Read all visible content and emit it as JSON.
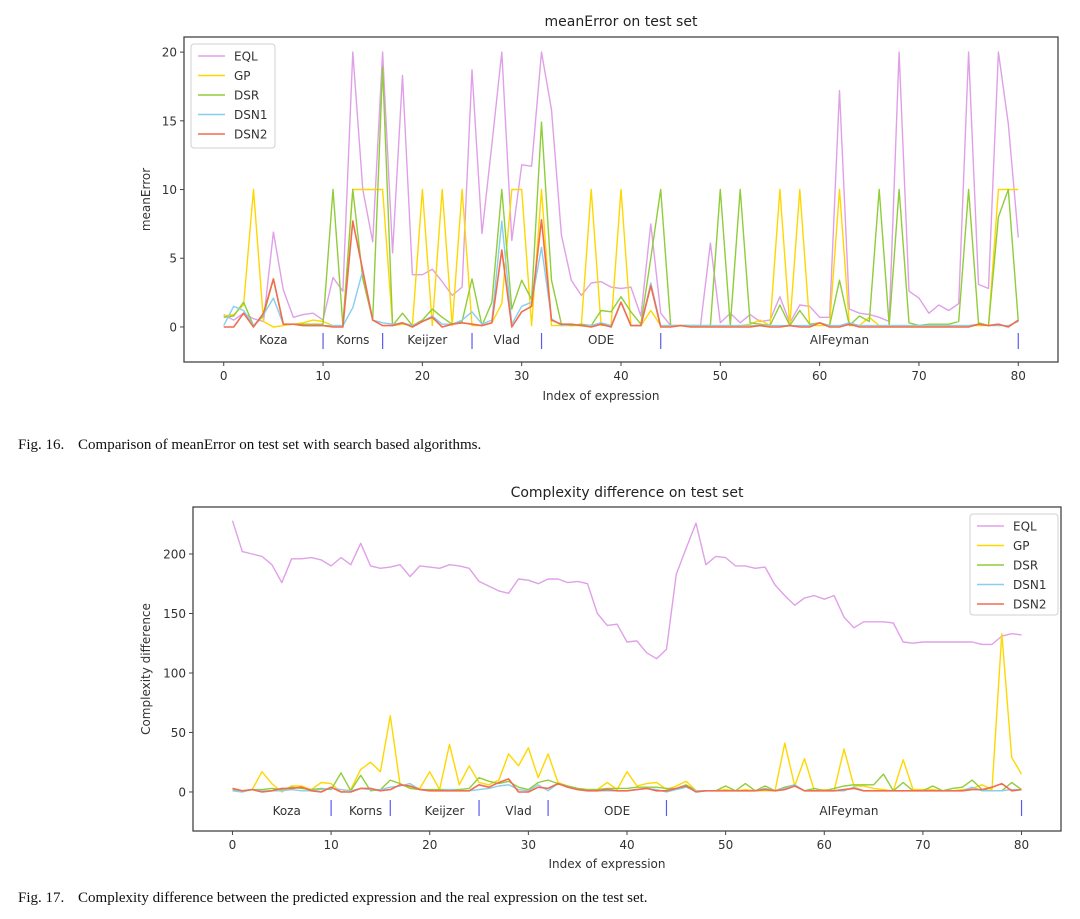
{
  "captions": {
    "fig16": {
      "label": "Fig. 16.",
      "text": "Comparison of meanError on test set with search based algorithms."
    },
    "fig17": {
      "label": "Fig. 17.",
      "text": "Complexity difference between the predicted expression and the real expression on the test set."
    }
  },
  "colors": {
    "EQL": "#e0a0e8",
    "GP": "#ffd700",
    "DSR": "#8fcd3a",
    "DSN1": "#87cef0",
    "DSN2": "#f26c4f",
    "separator": "#5a5af0"
  },
  "chart_data": [
    {
      "type": "line",
      "title": "meanError on test set",
      "xlabel": "Index of expression",
      "ylabel": "meanError",
      "xlim": [
        -4,
        84
      ],
      "ylim": [
        -2.55,
        21.1
      ],
      "xticks": [
        0,
        10,
        20,
        30,
        40,
        50,
        60,
        70,
        80
      ],
      "yticks": [
        0,
        5,
        10,
        15,
        20
      ],
      "legend_position": "upper-left",
      "groups": [
        {
          "label": "Koza",
          "center": 5,
          "end": 10
        },
        {
          "label": "Korns",
          "center": 13,
          "end": 16
        },
        {
          "label": "Keijzer",
          "center": 20.5,
          "end": 25
        },
        {
          "label": "Vlad",
          "center": 28.5,
          "end": 32
        },
        {
          "label": "ODE",
          "center": 38,
          "end": 44
        },
        {
          "label": "AIFeyman",
          "center": 62,
          "end": 80
        }
      ],
      "series": [
        {
          "name": "EQL",
          "values": [
            0.9,
            0.5,
            1.0,
            0.6,
            0.4,
            6.9,
            2.7,
            0.7,
            0.9,
            1.0,
            0.5,
            3.6,
            2.6,
            20,
            10,
            6.2,
            20,
            5.4,
            18.3,
            3.8,
            3.8,
            4.2,
            3.3,
            2.3,
            2.9,
            18.7,
            6.8,
            13.3,
            20,
            6.3,
            11.8,
            11.7,
            20,
            15.8,
            6.7,
            3.4,
            2.3,
            3.2,
            3.3,
            2.9,
            2.8,
            2.9,
            0.8,
            7.5,
            1.0,
            0.1,
            0.1,
            0.1,
            0.1,
            6.1,
            0.3,
            1.0,
            0.3,
            0.9,
            0.4,
            0.5,
            2.2,
            0.3,
            1.6,
            1.5,
            0.7,
            0.7,
            17.2,
            1.3,
            1.0,
            0.9,
            0.7,
            0.4,
            20,
            2.6,
            2.1,
            1.0,
            1.6,
            1.2,
            1.7,
            20,
            3.1,
            2.8,
            20,
            14.8,
            6.5
          ]
        },
        {
          "name": "GP",
          "values": [
            0.8,
            0.9,
            1.6,
            10,
            0.4,
            0,
            0.1,
            0.2,
            0.3,
            0.5,
            0.4,
            0.1,
            0.1,
            10,
            10,
            10,
            10,
            0.1,
            0.2,
            0.1,
            10,
            0.1,
            10,
            0.1,
            10,
            0.1,
            0.1,
            0.3,
            1.7,
            10,
            10,
            0.1,
            10,
            0.1,
            0.1,
            0.1,
            0.1,
            10,
            0.1,
            0.1,
            10,
            0.1,
            0.1,
            1.2,
            0.1,
            0.1,
            0.1,
            0.1,
            0.1,
            0.1,
            0.1,
            0.1,
            0.1,
            0.2,
            0.5,
            0.1,
            10,
            0.1,
            10,
            0.1,
            0.1,
            0.1,
            10,
            0.1,
            0.1,
            0.7,
            0.1,
            0.1,
            0.1,
            0.1,
            0.1,
            0.1,
            0.1,
            0.1,
            0.1,
            0.1,
            0.1,
            0.1,
            10,
            10,
            10
          ]
        },
        {
          "name": "DSR",
          "values": [
            0.7,
            0.8,
            1.8,
            0.1,
            0.8,
            3.5,
            0.2,
            0.2,
            0.2,
            0.2,
            0.2,
            10,
            0.1,
            10,
            3.5,
            0.5,
            18.9,
            0.1,
            1.0,
            0.1,
            0.5,
            1.3,
            0.7,
            0.2,
            0.4,
            3.5,
            0.1,
            1.8,
            10,
            1.3,
            3.4,
            2.0,
            14.9,
            3.4,
            0.2,
            0.1,
            0.2,
            0.1,
            1.2,
            1.1,
            2.2,
            1.1,
            0.2,
            5.0,
            10,
            0.1,
            0.1,
            0.1,
            0.1,
            0.1,
            10,
            0.1,
            10,
            0.3,
            0.2,
            0.1,
            1.6,
            0.1,
            1.2,
            0.2,
            0.3,
            0.1,
            3.4,
            0.1,
            0.8,
            0.4,
            10,
            0.1,
            10,
            0.3,
            0.1,
            0.2,
            0.2,
            0.2,
            0.4,
            10,
            0.3,
            0.1,
            8,
            10,
            0.4
          ]
        },
        {
          "name": "DSN1",
          "values": [
            0.1,
            1.5,
            1.2,
            0.1,
            0.9,
            2.1,
            0.2,
            0.2,
            0.1,
            0.1,
            0.1,
            0.1,
            0.1,
            1.4,
            4.1,
            0.5,
            0.3,
            0.2,
            0.3,
            0.1,
            0.4,
            0.8,
            0.2,
            0.2,
            0.5,
            1.1,
            0.2,
            0.5,
            7.7,
            0.2,
            1.5,
            1.8,
            5.8,
            0.6,
            0.1,
            0.2,
            0.1,
            0.1,
            0.3,
            0.1,
            1.8,
            0.1,
            0.1,
            3.2,
            0.1,
            0.1,
            0.1,
            0.1,
            0.1,
            0.1,
            0.1,
            0.1,
            0.1,
            0.1,
            0.1,
            0.1,
            0.1,
            0.1,
            0.1,
            0.1,
            0.3,
            0.1,
            0.1,
            0.3,
            0.1,
            0.1,
            0.1,
            0.1,
            0.1,
            0.1,
            0.1,
            0.1,
            0.1,
            0.1,
            0.1,
            0.1,
            0.2,
            0.1,
            0.1,
            0.1,
            0.4
          ]
        },
        {
          "name": "DSN2",
          "values": [
            0.0,
            0.0,
            1.0,
            0.0,
            1.0,
            3.5,
            0.2,
            0.2,
            0.1,
            0.1,
            0.1,
            0.0,
            0.0,
            7.7,
            4.1,
            0.5,
            0.1,
            0.1,
            0.3,
            0.0,
            0.4,
            0.7,
            0.0,
            0.2,
            0.3,
            0.2,
            0.1,
            0.3,
            5.6,
            0.0,
            1.1,
            1.5,
            7.8,
            0.5,
            0.2,
            0.2,
            0.1,
            0.0,
            0.2,
            0.0,
            1.8,
            0.1,
            0.1,
            3.0,
            0.0,
            0.0,
            0.1,
            0.0,
            0.0,
            0.0,
            0.0,
            0.0,
            0.0,
            0.0,
            0.1,
            0.0,
            0.0,
            0.1,
            0.0,
            0.0,
            0.3,
            0.0,
            0.0,
            0.2,
            0.0,
            0.0,
            0.0,
            0.0,
            0.0,
            0.0,
            0.0,
            0.0,
            0.0,
            0.0,
            0.0,
            0.0,
            0.2,
            0.1,
            0.2,
            0.0,
            0.5
          ]
        }
      ]
    },
    {
      "type": "line",
      "title": "Complexity difference on test set",
      "xlabel": "Index of expression",
      "ylabel": "Complexity difference",
      "xlim": [
        -4,
        84
      ],
      "ylim": [
        -32.8,
        239.5
      ],
      "xticks": [
        0,
        10,
        20,
        30,
        40,
        50,
        60,
        70,
        80
      ],
      "yticks": [
        0,
        50,
        100,
        150,
        200
      ],
      "legend_position": "upper-right",
      "groups": [
        {
          "label": "Koza",
          "center": 5.5,
          "end": 10
        },
        {
          "label": "Korns",
          "center": 13.5,
          "end": 16
        },
        {
          "label": "Keijzer",
          "center": 21.5,
          "end": 25
        },
        {
          "label": "Vlad",
          "center": 29,
          "end": 32
        },
        {
          "label": "ODE",
          "center": 39,
          "end": 44
        },
        {
          "label": "AIFeyman",
          "center": 62.5,
          "end": 80
        }
      ],
      "series": [
        {
          "name": "EQL",
          "values": [
            228,
            202,
            200,
            198,
            191,
            176,
            196,
            196,
            197,
            195,
            190,
            197,
            191,
            209,
            190,
            188,
            189,
            191,
            181,
            190,
            189,
            188,
            191,
            190,
            188,
            177,
            173,
            169,
            167,
            179,
            178,
            175,
            179,
            179,
            176,
            177,
            175,
            150,
            140,
            141,
            126,
            127,
            117,
            112,
            120,
            183,
            205,
            226,
            191,
            198,
            197,
            190,
            190,
            188,
            189,
            174,
            165,
            157,
            163,
            165,
            162,
            165,
            147,
            138,
            143,
            143,
            143,
            142,
            126,
            125,
            126,
            126,
            126,
            126,
            126,
            126,
            124,
            124,
            131,
            133,
            132
          ]
        },
        {
          "name": "GP",
          "values": [
            3,
            1,
            2,
            17,
            7,
            0,
            5,
            5,
            2,
            8,
            7,
            0,
            2,
            19,
            25,
            17,
            64,
            6,
            4,
            3,
            17,
            2,
            40,
            6,
            22,
            8,
            6,
            10,
            32,
            22,
            37,
            12,
            32,
            8,
            5,
            3,
            2,
            2,
            8,
            2,
            17,
            5,
            7,
            8,
            2,
            5,
            9,
            1,
            1,
            1,
            2,
            1,
            2,
            1,
            1,
            1,
            41,
            5,
            28,
            1,
            2,
            1,
            36,
            5,
            5,
            3,
            2,
            1,
            27,
            2,
            2,
            2,
            1,
            1,
            2,
            3,
            6,
            2,
            133,
            29,
            15
          ]
        },
        {
          "name": "DSR",
          "values": [
            2,
            1,
            2,
            2,
            3,
            2,
            4,
            3,
            2,
            3,
            2,
            16,
            1,
            14,
            1,
            2,
            10,
            7,
            3,
            2,
            2,
            2,
            2,
            2,
            3,
            12,
            9,
            7,
            9,
            4,
            2,
            8,
            10,
            7,
            5,
            3,
            2,
            2,
            3,
            3,
            3,
            4,
            4,
            4,
            3,
            3,
            6,
            1,
            1,
            1,
            5,
            1,
            7,
            1,
            5,
            1,
            4,
            6,
            1,
            3,
            1,
            3,
            5,
            6,
            6,
            6,
            15,
            1,
            8,
            1,
            1,
            5,
            1,
            3,
            4,
            10,
            2,
            1,
            1,
            8,
            2
          ]
        },
        {
          "name": "DSN1",
          "values": [
            1,
            0,
            2,
            1,
            1,
            1,
            2,
            1,
            1,
            2,
            3,
            2,
            1,
            3,
            2,
            2,
            4,
            5,
            7,
            2,
            1,
            1,
            2,
            1,
            1,
            2,
            3,
            5,
            6,
            2,
            1,
            6,
            1,
            7,
            4,
            2,
            1,
            1,
            1,
            1,
            1,
            2,
            3,
            2,
            0,
            2,
            4,
            1,
            1,
            1,
            1,
            1,
            1,
            1,
            3,
            1,
            3,
            6,
            1,
            1,
            1,
            1,
            1,
            4,
            1,
            1,
            1,
            1,
            1,
            1,
            1,
            1,
            1,
            1,
            1,
            4,
            1,
            1,
            1,
            2,
            2
          ]
        },
        {
          "name": "DSN2",
          "values": [
            3,
            1,
            2,
            0,
            1,
            3,
            3,
            4,
            1,
            0,
            4,
            0,
            0,
            3,
            3,
            1,
            2,
            6,
            5,
            2,
            1,
            1,
            1,
            1,
            1,
            6,
            4,
            8,
            11,
            0,
            0,
            4,
            3,
            7,
            4,
            2,
            1,
            1,
            2,
            1,
            1,
            2,
            3,
            1,
            1,
            3,
            5,
            0,
            1,
            1,
            1,
            1,
            1,
            1,
            2,
            1,
            2,
            5,
            1,
            1,
            1,
            1,
            2,
            3,
            1,
            1,
            1,
            1,
            1,
            1,
            1,
            1,
            1,
            1,
            1,
            2,
            2,
            4,
            7,
            1,
            2
          ]
        }
      ]
    }
  ]
}
